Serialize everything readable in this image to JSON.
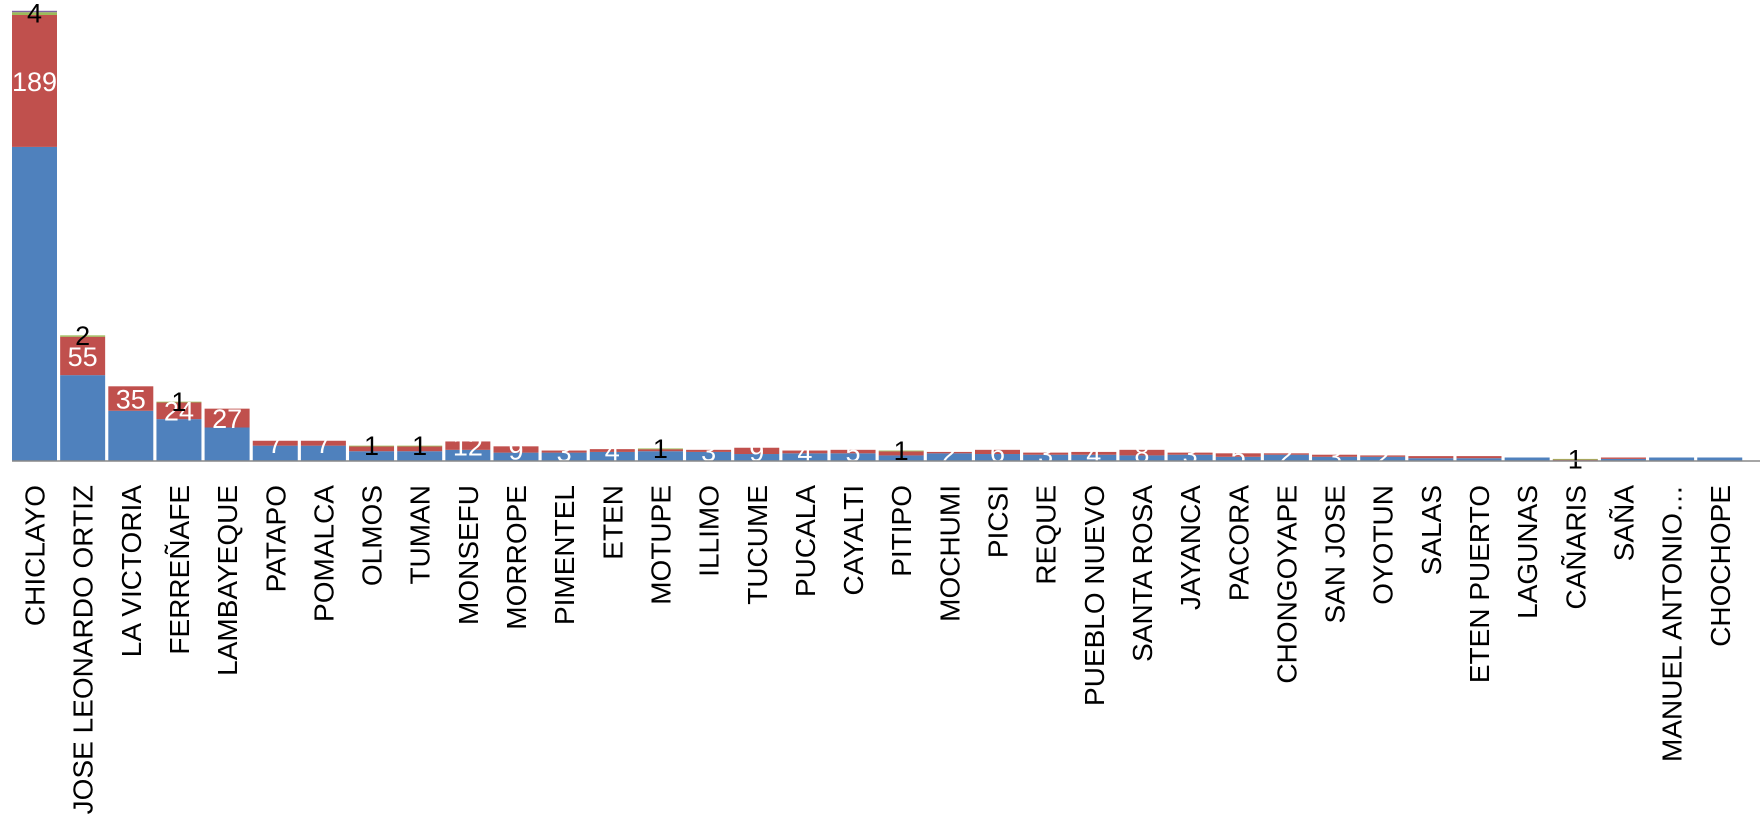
{
  "chart_data": {
    "type": "bar",
    "stacked": true,
    "grid": false,
    "legend": "none",
    "categories": [
      "CHICLAYO",
      "JOSE LEONARDO ORTIZ",
      "LA VICTORIA",
      "FERREÑAFE",
      "LAMBAYEQUE",
      "PATAPO",
      "POMALCA",
      "OLMOS",
      "TUMAN",
      "MONSEFU",
      "MORROPE",
      "PIMENTEL",
      "ETEN",
      "MOTUPE",
      "ILLIMO",
      "TUCUME",
      "PUCALA",
      "CAYALTI",
      "PITIPO",
      "MOCHUMI",
      "PICSI",
      "REQUE",
      "PUEBLO NUEVO",
      "SANTA ROSA",
      "JAYANCA",
      "PACORA",
      "CHONGOYAPE",
      "SAN JOSE",
      "OYOTUN",
      "SALAS",
      "ETEN PUERTO",
      "LAGUNAS",
      "CAÑARIS",
      "SAÑA",
      "MANUEL ANTONIO…",
      "CHOCHOPE"
    ],
    "series": [
      {
        "color": "#4F81BD",
        "values": [
          450,
          123,
          72,
          60,
          48,
          22,
          22,
          14,
          14,
          16,
          12,
          12,
          13,
          14,
          13,
          10,
          11,
          11,
          8,
          11,
          10,
          9,
          9,
          8,
          9,
          6,
          9,
          6,
          6,
          4,
          4,
          5,
          1,
          3,
          5,
          5
        ],
        "labels": [
          "",
          "",
          "",
          "",
          "",
          "",
          "",
          "",
          "",
          "",
          "",
          "",
          "",
          "",
          "",
          "",
          "",
          "",
          "",
          "",
          "",
          "",
          "",
          "",
          "",
          "",
          "",
          "",
          "",
          "",
          "",
          "",
          "",
          "",
          "",
          ""
        ]
      },
      {
        "color": "#C0504D",
        "values": [
          189,
          55,
          35,
          24,
          27,
          7,
          7,
          7,
          7,
          12,
          9,
          3,
          4,
          3,
          3,
          9,
          4,
          5,
          6,
          2,
          6,
          3,
          4,
          8,
          3,
          5,
          2,
          3,
          2,
          3,
          3,
          0,
          1,
          2,
          0,
          0
        ],
        "labels": [
          "189",
          "55",
          "35",
          "24",
          "27",
          "7",
          "7",
          "",
          "",
          "12",
          "9",
          "3",
          "4",
          "",
          "3",
          "9",
          "4",
          "5",
          "",
          "2",
          "6",
          "3",
          "4",
          "8",
          "3",
          "5",
          "2",
          "3",
          "2",
          "",
          "",
          "",
          "",
          "",
          "",
          ""
        ]
      },
      {
        "color": "#9BBB59",
        "values": [
          4,
          2,
          0,
          1,
          0,
          0,
          0,
          1,
          1,
          0,
          0,
          0,
          0,
          1,
          0,
          0,
          0,
          0,
          1,
          0,
          0,
          0,
          0,
          0,
          0,
          0,
          0,
          0,
          0,
          0,
          0,
          0,
          1,
          0,
          0,
          0
        ],
        "labels": [
          "4",
          "2",
          "",
          "1",
          "",
          "",
          "",
          "1",
          "1",
          "",
          "",
          "",
          "",
          "1",
          "",
          "",
          "",
          "",
          "1",
          "",
          "",
          "",
          "",
          "",
          "",
          "",
          "",
          "",
          "",
          "",
          "",
          "",
          "1",
          "",
          "",
          ""
        ]
      },
      {
        "color": "#8064A2",
        "values": [
          2,
          0,
          0,
          0,
          0,
          0,
          0,
          0,
          0,
          0,
          0,
          0,
          0,
          0,
          0,
          0,
          0,
          0,
          0,
          0,
          0,
          0,
          0,
          0,
          0,
          0,
          0,
          0,
          0,
          0,
          0,
          0,
          0,
          0,
          0,
          0
        ],
        "labels": [
          "",
          "",
          "",
          "",
          "",
          "",
          "",
          "",
          "",
          "",
          "",
          "",
          "",
          "",
          "",
          "",
          "",
          "",
          "",
          "",
          "",
          "",
          "",
          "",
          "",
          "",
          "",
          "",
          "",
          "",
          "",
          "",
          "",
          "",
          "",
          ""
        ]
      }
    ]
  }
}
